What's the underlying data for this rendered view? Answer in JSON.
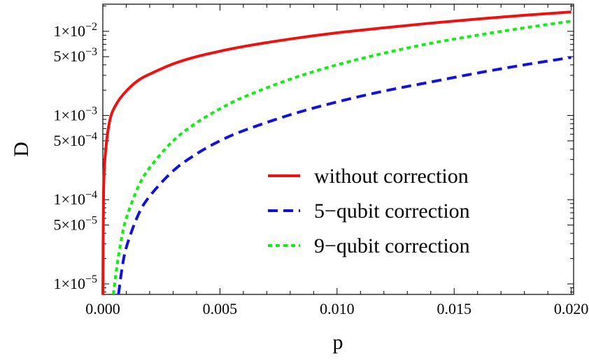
{
  "chart_data": {
    "type": "line",
    "title": "",
    "xlabel": "p",
    "ylabel": "D",
    "xlim": [
      0,
      0.0201
    ],
    "ylim": [
      7.5e-06,
      0.021
    ],
    "yscale": "log",
    "grid": false,
    "legend_position": "center-right",
    "x_ticks": [
      0,
      0.005,
      0.01,
      0.015,
      0.02
    ],
    "x_tick_labels": [
      "0.000",
      "0.005",
      "0.010",
      "0.015",
      "0.020"
    ],
    "y_ticks": [
      1e-05,
      5e-05,
      0.0001,
      0.0005,
      0.001,
      0.005,
      0.01
    ],
    "y_tick_labels": [
      {
        "mantissa": "1",
        "exponent": "-5"
      },
      {
        "mantissa": "5",
        "exponent": "-5"
      },
      {
        "mantissa": "1",
        "exponent": "-4"
      },
      {
        "mantissa": "5",
        "exponent": "-4"
      },
      {
        "mantissa": "1",
        "exponent": "-3"
      },
      {
        "mantissa": "5",
        "exponent": "-3"
      },
      {
        "mantissa": "1",
        "exponent": "-2"
      }
    ],
    "y_tick_times": "×10",
    "series": [
      {
        "name": "without correction",
        "color": "#ee1111",
        "dash": "solid",
        "x": [
          2e-06,
          3e-05,
          0.0001,
          0.0003,
          0.0006,
          0.001,
          0.0015,
          0.002,
          0.003,
          0.004,
          0.005,
          0.006,
          0.008,
          0.01,
          0.012,
          0.014,
          0.016,
          0.018,
          0.02
        ],
        "y": [
          7.4e-06,
          0.00011,
          0.00033,
          0.00088,
          0.0014,
          0.00195,
          0.0026,
          0.0031,
          0.0041,
          0.005,
          0.0058,
          0.0066,
          0.0081,
          0.0096,
          0.011,
          0.0125,
          0.014,
          0.0155,
          0.017
        ]
      },
      {
        "name": "5−qubit correction",
        "color": "#1111dd",
        "dash": "dashed",
        "x": [
          0.00067,
          0.0008,
          0.001,
          0.0015,
          0.002,
          0.003,
          0.004,
          0.005,
          0.006,
          0.008,
          0.01,
          0.012,
          0.014,
          0.016,
          0.018,
          0.02
        ],
        "y": [
          7.5e-06,
          1.4e-05,
          2.7e-05,
          6.5e-05,
          0.00011,
          0.00022,
          0.00035,
          0.0005,
          0.00066,
          0.00102,
          0.00145,
          0.00195,
          0.0025,
          0.0032,
          0.004,
          0.0049
        ]
      },
      {
        "name": "9−qubit correction",
        "color": "#11ee11",
        "dash": "dotted",
        "x": [
          0.00045,
          0.0006,
          0.0008,
          0.001,
          0.0015,
          0.002,
          0.003,
          0.004,
          0.005,
          0.006,
          0.008,
          0.01,
          0.012,
          0.014,
          0.016,
          0.018,
          0.02
        ],
        "y": [
          7.5e-06,
          1.6e-05,
          3.5e-05,
          6e-05,
          0.00014,
          0.00024,
          0.0005,
          0.00082,
          0.0012,
          0.00165,
          0.0027,
          0.004,
          0.0055,
          0.0072,
          0.009,
          0.011,
          0.0132
        ]
      }
    ]
  }
}
